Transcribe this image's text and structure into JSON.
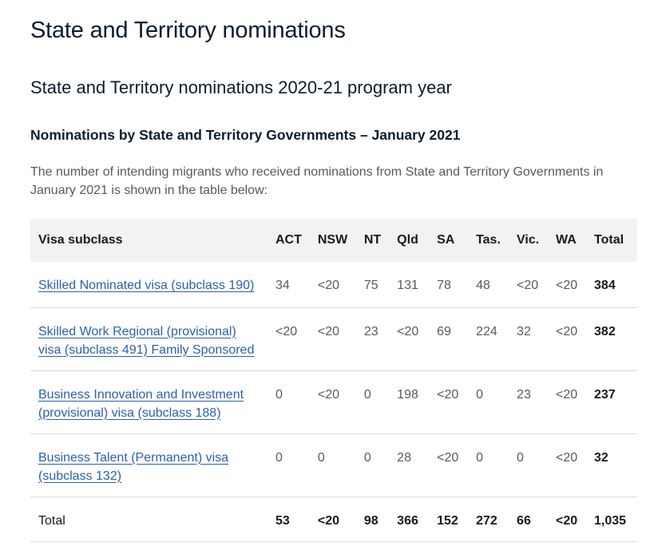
{
  "page": {
    "title": "State and Territory nominations",
    "subtitle": "State and Territory nominations 2020-21 program year",
    "section_heading": "Nominations by State and Territory Governments – January 2021",
    "intro": "The number of intending migrants who received nominations from State and Territory Governments in January 2021 is shown in the table below:"
  },
  "table": {
    "headers": [
      "Visa subclass",
      "ACT",
      "NSW",
      "NT",
      "Qld",
      "SA",
      "Tas.",
      "Vic.",
      "WA",
      "Total"
    ],
    "rows": [
      {
        "visa": "Skilled Nominated visa (subclass 190)",
        "values": [
          "34",
          "<20",
          "75",
          "131",
          "78",
          "48",
          "<20",
          "<20"
        ],
        "total": "384"
      },
      {
        "visa": "Skilled Work Regional (provisional) visa (subclass 491) Family Sponsored",
        "values": [
          "<20",
          "<20",
          "23",
          "<20",
          "69",
          "224",
          "32",
          "<20"
        ],
        "total": "382"
      },
      {
        "visa": "Business Innovation and Investment (provisional) visa (subclass 188)",
        "values": [
          "0",
          "<20",
          "0",
          "198",
          "<20",
          "0",
          "23",
          "<20"
        ],
        "total": "237"
      },
      {
        "visa": "Business Talent (Permanent) visa (subclass 132)",
        "values": [
          "0",
          "0",
          "0",
          "28",
          "<20",
          "0",
          "0",
          "<20"
        ],
        "total": "32"
      }
    ],
    "total_row": {
      "label": "Total",
      "values": [
        "53",
        "<20",
        "98",
        "366",
        "152",
        "272",
        "66",
        "<20"
      ],
      "total": "1,035"
    }
  },
  "colors": {
    "heading": "#0b1d2e",
    "link": "#2a62a8",
    "body_text": "#555b61",
    "header_bg": "#f2f2f2"
  }
}
